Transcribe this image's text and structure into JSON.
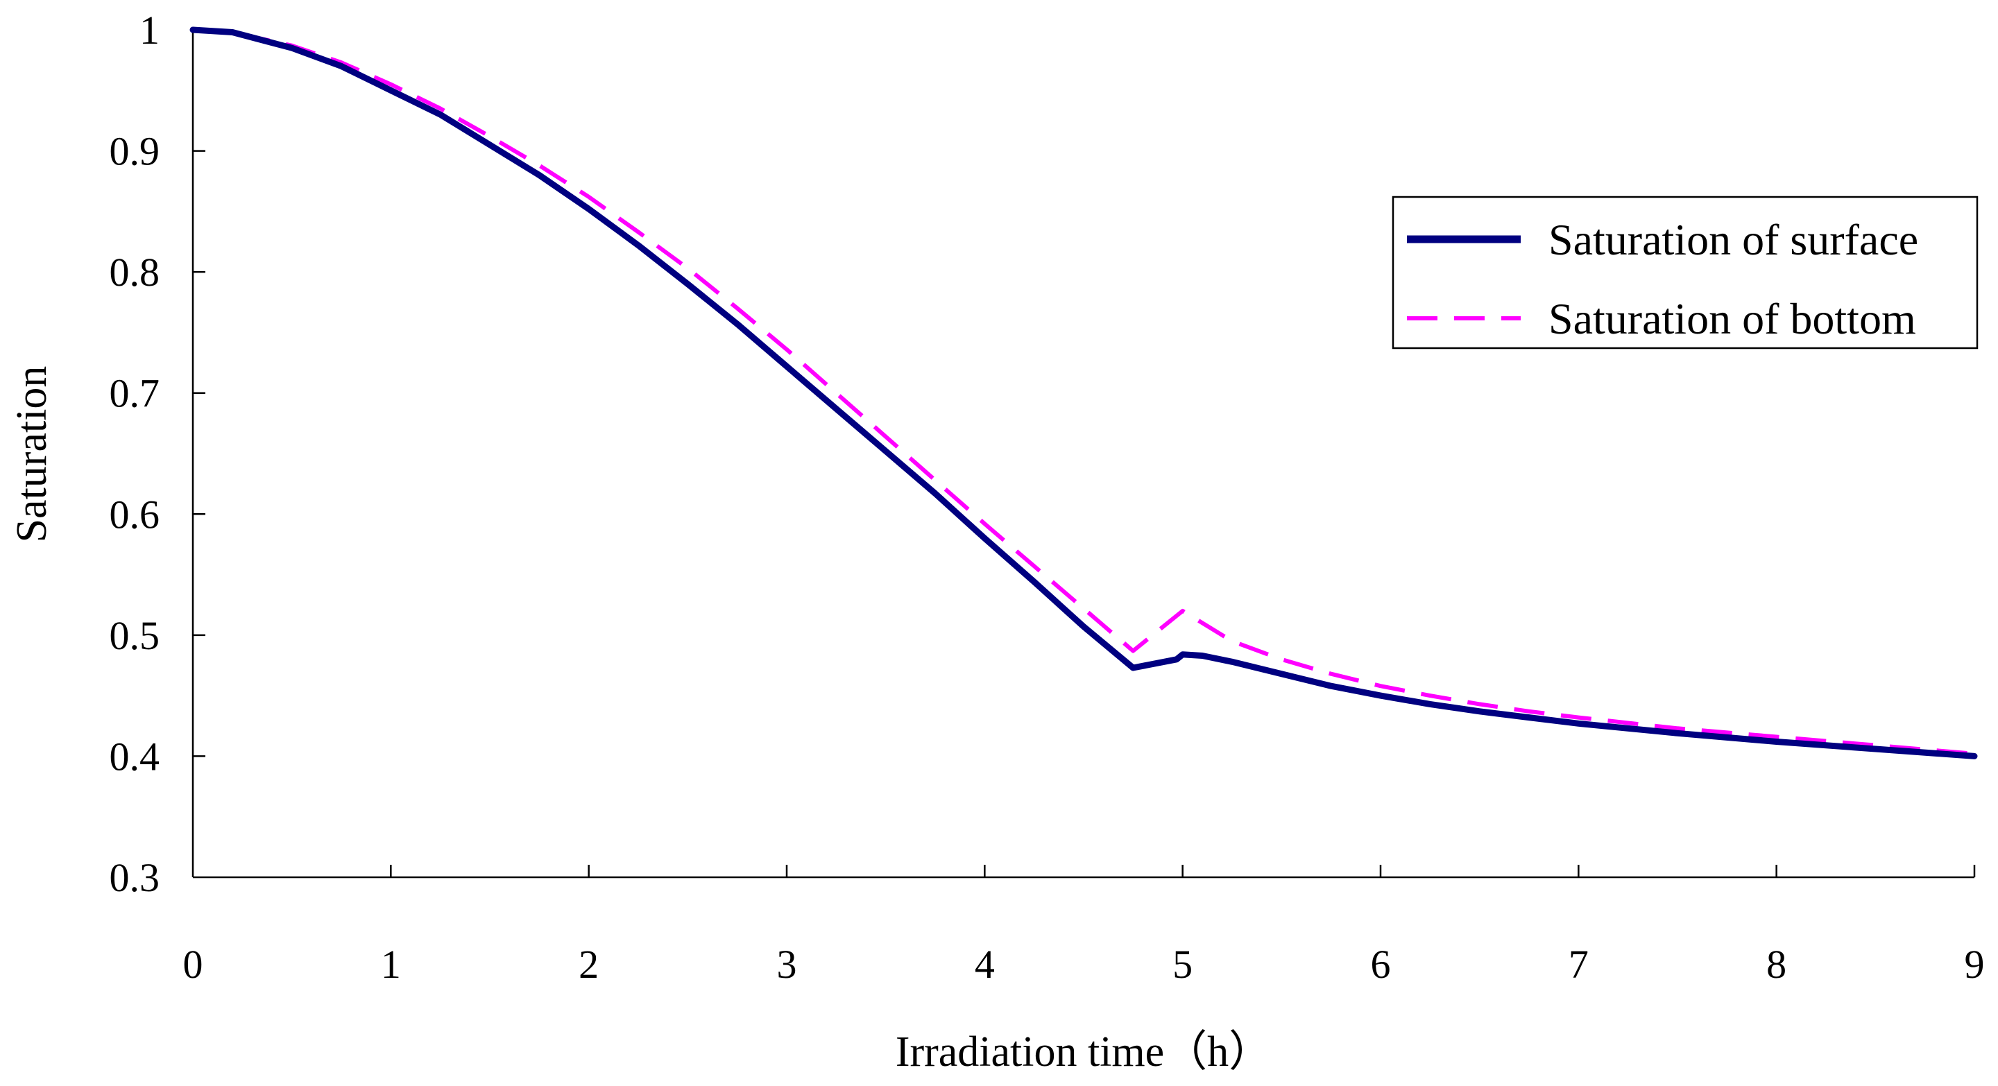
{
  "chart_data": {
    "type": "line",
    "title": "",
    "xlabel": "Irradiation time（h）",
    "ylabel": "Saturation",
    "xlim": [
      0,
      9
    ],
    "ylim": [
      0.3,
      1.0
    ],
    "x_ticks": [
      0,
      1,
      2,
      3,
      4,
      5,
      6,
      7,
      8,
      9
    ],
    "x_tick_labels": [
      "0",
      "1",
      "2",
      "3",
      "4",
      "5",
      "6",
      "7",
      "8",
      "9"
    ],
    "y_ticks": [
      0.3,
      0.4,
      0.5,
      0.6,
      0.7,
      0.8,
      0.9,
      1.0
    ],
    "y_tick_labels": [
      "0.3",
      "0.4",
      "0.5",
      "0.6",
      "0.7",
      "0.8",
      "0.9",
      "1"
    ],
    "grid": false,
    "legend_position": "top-right",
    "series": [
      {
        "name": "Saturation of surface",
        "color": "#000080",
        "style": "solid",
        "x": [
          0,
          0.2,
          0.5,
          0.75,
          1.0,
          1.25,
          1.5,
          1.75,
          2.0,
          2.25,
          2.5,
          2.75,
          3.0,
          3.25,
          3.5,
          3.75,
          4.0,
          4.25,
          4.5,
          4.75,
          4.97,
          5.0,
          5.1,
          5.25,
          5.5,
          5.75,
          6.0,
          6.25,
          6.5,
          6.75,
          7.0,
          7.5,
          8.0,
          8.5,
          9.0
        ],
        "y": [
          1.0,
          0.998,
          0.985,
          0.97,
          0.95,
          0.93,
          0.905,
          0.88,
          0.852,
          0.822,
          0.79,
          0.757,
          0.722,
          0.687,
          0.652,
          0.617,
          0.58,
          0.544,
          0.507,
          0.473,
          0.48,
          0.484,
          0.483,
          0.478,
          0.468,
          0.458,
          0.45,
          0.443,
          0.437,
          0.432,
          0.427,
          0.419,
          0.412,
          0.406,
          0.4
        ]
      },
      {
        "name": "Saturation of bottom",
        "color": "#FF00FF",
        "style": "dashed",
        "x": [
          0,
          0.2,
          0.5,
          0.75,
          1.0,
          1.25,
          1.5,
          1.75,
          2.0,
          2.25,
          2.5,
          2.75,
          3.0,
          3.25,
          3.5,
          3.75,
          4.0,
          4.25,
          4.5,
          4.75,
          5.0,
          5.25,
          5.5,
          5.75,
          6.0,
          6.25,
          6.5,
          6.75,
          7.0,
          7.5,
          8.0,
          8.5,
          9.0
        ],
        "y": [
          1.0,
          0.998,
          0.987,
          0.973,
          0.955,
          0.935,
          0.912,
          0.888,
          0.862,
          0.833,
          0.803,
          0.77,
          0.736,
          0.7,
          0.664,
          0.628,
          0.592,
          0.557,
          0.522,
          0.487,
          0.52,
          0.495,
          0.48,
          0.468,
          0.458,
          0.45,
          0.443,
          0.437,
          0.432,
          0.423,
          0.416,
          0.409,
          0.402
        ]
      }
    ]
  }
}
